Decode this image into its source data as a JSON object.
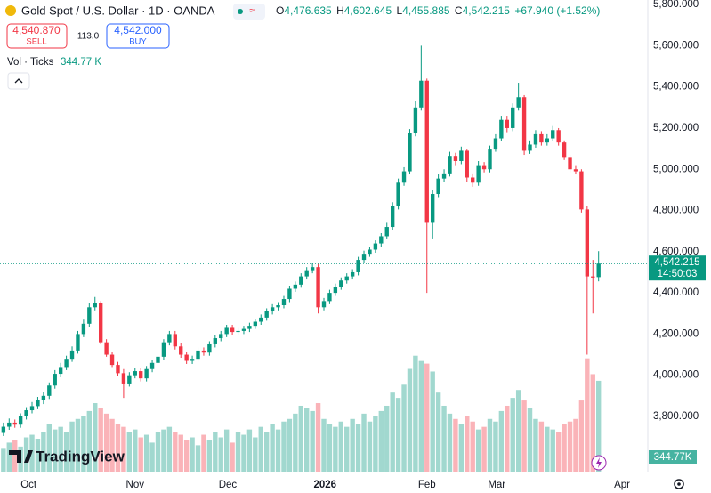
{
  "chart_data": {
    "type": "candlestick",
    "title": "Gold Spot / U.S. Dollar · 1D · OANDA",
    "header": {
      "ohlc": [
        {
          "label": "O",
          "value": "4,476.635"
        },
        {
          "label": "H",
          "value": "4,602.645"
        },
        {
          "label": "L",
          "value": "4,455.885"
        },
        {
          "label": "C",
          "value": "4,542.215"
        }
      ],
      "change": "+67.940 (+1.52%)",
      "sell": {
        "price": "4,540.870",
        "label": "SELL"
      },
      "spread": "113.0",
      "buy": {
        "price": "4,542.000",
        "label": "BUY"
      },
      "volume_label": "Vol · Ticks",
      "volume_value": "344.77 K"
    },
    "price_tag": "4,542.215",
    "countdown": "14:50:03",
    "volume_tag": "344.77K",
    "brand": "TradingView",
    "up_color": "#089981",
    "down_color": "#f23645",
    "open": [
      3720,
      3750,
      3770,
      3760,
      3800,
      3830,
      3850,
      3878,
      3900,
      3950,
      4007,
      4040,
      4080,
      4120,
      4200,
      4250,
      4330,
      4350,
      4160,
      4100,
      4050,
      4010,
      3960,
      4000,
      4020,
      3985,
      4030,
      4060,
      4090,
      4160,
      4200,
      4140,
      4100,
      4070,
      4080,
      4120,
      4110,
      4150,
      4180,
      4200,
      4230,
      4210,
      4215,
      4225,
      4240,
      4260,
      4280,
      4310,
      4330,
      4340,
      4370,
      4420,
      4440,
      4480,
      4510,
      4525,
      4330,
      4360,
      4400,
      4430,
      4460,
      4480,
      4500,
      4560,
      4590,
      4610,
      4640,
      4675,
      4720,
      4820,
      4935,
      4990,
      5175,
      5300,
      5430,
      4740,
      4880,
      4955,
      4980,
      5065,
      5040,
      5090,
      4960,
      4935,
      5020,
      5000,
      5100,
      5150,
      5240,
      5200,
      5300,
      5350,
      5090,
      5120,
      5170,
      5130,
      5150,
      5190,
      5130,
      5060,
      5000,
      4990,
      4805,
      4480,
      4476.635
    ],
    "high": [
      3770,
      3790,
      3785,
      3815,
      3845,
      3870,
      3895,
      3920,
      3965,
      4025,
      4060,
      4095,
      4140,
      4215,
      4270,
      4350,
      4380,
      4360,
      4175,
      4115,
      4065,
      4030,
      4015,
      4035,
      4035,
      4045,
      4075,
      4105,
      4175,
      4215,
      4215,
      4155,
      4115,
      4095,
      4135,
      4135,
      4165,
      4195,
      4215,
      4245,
      4245,
      4230,
      4240,
      4255,
      4275,
      4295,
      4325,
      4345,
      4355,
      4385,
      4435,
      4455,
      4495,
      4525,
      4545,
      4540,
      4375,
      4415,
      4445,
      4475,
      4495,
      4515,
      4575,
      4605,
      4625,
      4655,
      4690,
      4740,
      4840,
      4955,
      5010,
      5195,
      5330,
      5600,
      5440,
      4900,
      4975,
      5000,
      5085,
      5080,
      5110,
      5100,
      4980,
      5040,
      5035,
      5115,
      5170,
      5260,
      5260,
      5320,
      5420,
      5360,
      5140,
      5190,
      5185,
      5170,
      5210,
      5200,
      5140,
      5070,
      5020,
      5000,
      4820,
      4560,
      4602.645
    ],
    "low": [
      3705,
      3735,
      3745,
      3745,
      3785,
      3815,
      3835,
      3860,
      3885,
      3935,
      3990,
      4025,
      4065,
      4105,
      4185,
      4235,
      4315,
      4150,
      4090,
      4040,
      3995,
      3890,
      3945,
      3985,
      3970,
      3970,
      4015,
      4045,
      4075,
      4145,
      4125,
      4085,
      4055,
      4055,
      4065,
      4095,
      4095,
      4135,
      4165,
      4185,
      4195,
      4195,
      4200,
      4210,
      4225,
      4245,
      4265,
      4295,
      4315,
      4325,
      4355,
      4405,
      4425,
      4465,
      4495,
      4300,
      4315,
      4345,
      4385,
      4415,
      4445,
      4465,
      4485,
      4545,
      4575,
      4595,
      4625,
      4660,
      4705,
      4805,
      4920,
      4975,
      5160,
      5285,
      4400,
      4660,
      4865,
      4940,
      4965,
      5020,
      5025,
      4940,
      4915,
      4920,
      4985,
      4985,
      5085,
      5135,
      5180,
      5185,
      5285,
      5070,
      5075,
      5105,
      5115,
      5115,
      5135,
      5115,
      5045,
      4985,
      4975,
      4790,
      4100,
      4300,
      4455.885
    ],
    "close": [
      3750,
      3770,
      3760,
      3800,
      3830,
      3850,
      3878,
      3900,
      3950,
      4007,
      4040,
      4080,
      4120,
      4200,
      4250,
      4330,
      4350,
      4160,
      4100,
      4050,
      4010,
      3960,
      4000,
      4020,
      3985,
      4030,
      4060,
      4090,
      4160,
      4200,
      4140,
      4100,
      4070,
      4080,
      4120,
      4110,
      4150,
      4180,
      4200,
      4230,
      4210,
      4215,
      4225,
      4240,
      4260,
      4280,
      4310,
      4330,
      4340,
      4370,
      4420,
      4440,
      4480,
      4510,
      4525,
      4330,
      4360,
      4400,
      4430,
      4460,
      4480,
      4500,
      4560,
      4590,
      4610,
      4640,
      4675,
      4720,
      4820,
      4935,
      4990,
      5175,
      5300,
      5430,
      4740,
      4880,
      4955,
      4980,
      5065,
      5040,
      5090,
      4960,
      4935,
      5020,
      5000,
      5100,
      5150,
      5240,
      5200,
      5300,
      5350,
      5090,
      5120,
      5170,
      5130,
      5150,
      5190,
      5130,
      5060,
      5000,
      4990,
      4805,
      4480,
      4474.275,
      4542.215
    ],
    "volume": {
      "name": "Vol · Ticks",
      "axis": "y2",
      "values": [
        90,
        110,
        120,
        95,
        130,
        140,
        125,
        150,
        180,
        160,
        170,
        150,
        190,
        200,
        210,
        230,
        260,
        240,
        220,
        200,
        180,
        170,
        150,
        160,
        130,
        140,
        110,
        150,
        160,
        170,
        150,
        140,
        120,
        130,
        100,
        140,
        120,
        150,
        130,
        160,
        110,
        150,
        140,
        160,
        130,
        170,
        150,
        180,
        160,
        190,
        200,
        220,
        250,
        240,
        230,
        260,
        200,
        180,
        170,
        190,
        170,
        200,
        180,
        220,
        190,
        210,
        230,
        250,
        300,
        280,
        330,
        390,
        440,
        420,
        410,
        380,
        300,
        250,
        220,
        200,
        180,
        210,
        190,
        160,
        170,
        200,
        190,
        230,
        250,
        280,
        310,
        270,
        240,
        200,
        190,
        170,
        160,
        150,
        180,
        190,
        200,
        270,
        430,
        370,
        344.77
      ]
    },
    "xlim": [
      -0.6,
      112.6
    ],
    "xticks": [
      {
        "value": 4.4,
        "label": "Oct"
      },
      {
        "value": 23.0,
        "label": "Nov"
      },
      {
        "value": 39.2,
        "label": "Dec"
      },
      {
        "value": 56.2,
        "label": "2026",
        "bold": true
      },
      {
        "value": 74.0,
        "label": "Feb"
      },
      {
        "value": 86.2,
        "label": "Mar"
      },
      {
        "value": 108.1,
        "label": "Apr"
      }
    ],
    "ylim": [
      3532,
      5822
    ],
    "yticks": [
      {
        "value": 3800,
        "label": "3,800.000"
      },
      {
        "value": 4000,
        "label": "4,000.000"
      },
      {
        "value": 4200,
        "label": "4,200.000"
      },
      {
        "value": 4400,
        "label": "4,400.000"
      },
      {
        "value": 4600,
        "label": "4,600.000"
      },
      {
        "value": 4800,
        "label": "4,800.000"
      },
      {
        "value": 5000,
        "label": "5,000.000"
      },
      {
        "value": 5200,
        "label": "5,200.000"
      },
      {
        "value": 5400,
        "label": "5,400.000"
      },
      {
        "value": 5600,
        "label": "5,600.000"
      },
      {
        "value": 5800,
        "label": "5,800.000"
      }
    ],
    "y2lim": [
      0,
      1790
    ],
    "grid": false
  }
}
